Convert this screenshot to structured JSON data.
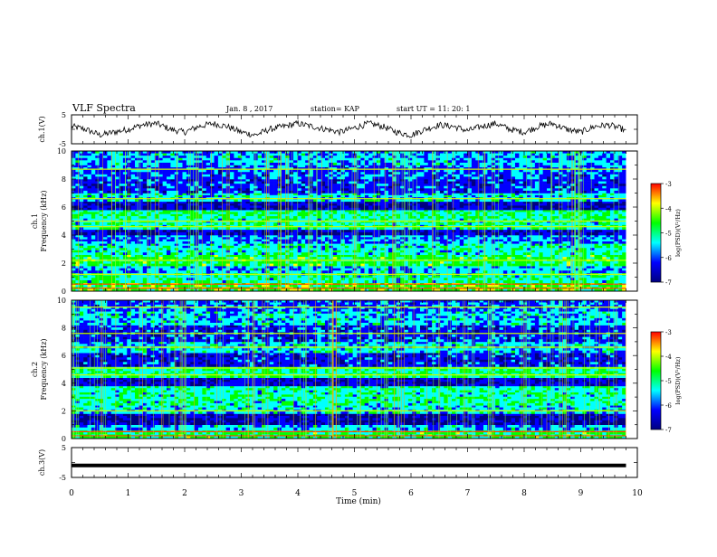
{
  "header": {
    "title": "VLF Spectra",
    "date": "Jan. 8 , 2017",
    "station": "station= KAP",
    "start": "start UT =  11: 20: 1"
  },
  "colorbar": {
    "label": "log(PSD)(V²/Hz)",
    "ticks": [
      "-3",
      "-4",
      "-5",
      "-6",
      "-7"
    ],
    "colors": [
      "#ff0000",
      "#ffff00",
      "#00ff00",
      "#00ffff",
      "#0000ff",
      "#000080"
    ]
  },
  "chart_data": [
    {
      "type": "line",
      "ylabel": "ch.1(V)",
      "yticks": [
        "5",
        "-5"
      ],
      "xlim": [
        0,
        10
      ],
      "ylim": [
        -5,
        5
      ],
      "series": [
        {
          "color": "#000000",
          "x": [
            0,
            0.25,
            0.5,
            0.75,
            1.0,
            1.25,
            1.5,
            1.75,
            2.0,
            2.25,
            2.5,
            2.75,
            3.0,
            3.25,
            3.5,
            3.75,
            4.0,
            4.25,
            4.5,
            4.75,
            5.0,
            5.25,
            5.5,
            5.75,
            6.0,
            6.25,
            6.5,
            6.75,
            7.0,
            7.25,
            7.5,
            7.75,
            8.0,
            8.25,
            8.5,
            8.75,
            9.0,
            9.25,
            9.5,
            9.75,
            9.8
          ],
          "y": [
            1.0,
            0,
            -2,
            -1,
            0,
            1.5,
            2,
            0,
            -1,
            1,
            2,
            1,
            -1,
            -2,
            0,
            1,
            2,
            1,
            0,
            -1,
            0.5,
            2,
            1,
            -1,
            -2,
            0,
            1.5,
            1,
            -0.5,
            1,
            2,
            0,
            -1,
            1,
            2,
            0,
            -1,
            1,
            1.5,
            0,
            -1
          ]
        }
      ]
    },
    {
      "type": "heatmap",
      "ylabel": "ch.1\nFrequency (kHz)",
      "xlim": [
        0,
        10
      ],
      "ylim": [
        0,
        10
      ],
      "yticks": [
        "10",
        "8",
        "6",
        "4",
        "2",
        "0"
      ],
      "x_extent_min": 9.8,
      "bands": [
        {
          "from": 0.0,
          "to": 0.6,
          "level": -4.5
        },
        {
          "from": 0.6,
          "to": 1.3,
          "level": -5.2
        },
        {
          "from": 1.3,
          "to": 1.8,
          "level": -5.6
        },
        {
          "from": 1.8,
          "to": 2.6,
          "level": -4.8
        },
        {
          "from": 2.6,
          "to": 3.4,
          "level": -5.3
        },
        {
          "from": 3.4,
          "to": 4.0,
          "level": -5.8
        },
        {
          "from": 4.0,
          "to": 4.4,
          "level": -6.5
        },
        {
          "from": 4.4,
          "to": 5.2,
          "level": -5.2
        },
        {
          "from": 5.2,
          "to": 5.8,
          "level": -5.0
        },
        {
          "from": 5.8,
          "to": 6.4,
          "level": -6.6
        },
        {
          "from": 6.4,
          "to": 7.0,
          "level": -5.4
        },
        {
          "from": 7.0,
          "to": 8.0,
          "level": -6.2
        },
        {
          "from": 8.0,
          "to": 9.0,
          "level": -6.0
        },
        {
          "from": 9.0,
          "to": 10.0,
          "level": -5.6
        }
      ],
      "lines_khz": [
        0.2,
        0.5,
        1.2,
        2.2,
        4.6,
        5.0,
        6.6,
        8.7
      ]
    },
    {
      "type": "heatmap",
      "ylabel": "ch.2\nFrequency (kHz)",
      "xlim": [
        0,
        10
      ],
      "ylim": [
        0,
        10
      ],
      "yticks": [
        "10",
        "8",
        "6",
        "4",
        "2",
        "0"
      ],
      "x_extent_min": 9.8,
      "bands": [
        {
          "from": 0.0,
          "to": 0.6,
          "level": -4.8
        },
        {
          "from": 0.6,
          "to": 1.0,
          "level": -5.6
        },
        {
          "from": 1.0,
          "to": 1.8,
          "level": -6.7
        },
        {
          "from": 1.8,
          "to": 2.4,
          "level": -5.4
        },
        {
          "from": 2.4,
          "to": 3.8,
          "level": -5.2
        },
        {
          "from": 3.8,
          "to": 4.4,
          "level": -6.5
        },
        {
          "from": 4.4,
          "to": 5.2,
          "level": -5.0
        },
        {
          "from": 5.2,
          "to": 6.2,
          "level": -6.3
        },
        {
          "from": 6.2,
          "to": 7.0,
          "level": -5.5
        },
        {
          "from": 7.0,
          "to": 8.2,
          "level": -6.2
        },
        {
          "from": 8.2,
          "to": 9.2,
          "level": -5.5
        },
        {
          "from": 9.2,
          "to": 10.0,
          "level": -6.0
        }
      ],
      "lines_khz": [
        0.2,
        0.5,
        2.0,
        4.6,
        5.1,
        6.6,
        7.6,
        9.5
      ]
    },
    {
      "type": "line",
      "ylabel": "ch.3(V)",
      "yticks": [
        "5",
        "-5"
      ],
      "xlim": [
        0,
        10
      ],
      "ylim": [
        -5,
        5
      ],
      "series": [
        {
          "color": "#000000",
          "x": [
            0,
            9.8
          ],
          "y": [
            -1,
            -1
          ]
        }
      ]
    }
  ],
  "xaxis": {
    "label": "Time  (min)",
    "ticks": [
      "0",
      "1",
      "2",
      "3",
      "4",
      "5",
      "6",
      "7",
      "8",
      "9",
      "10"
    ]
  }
}
